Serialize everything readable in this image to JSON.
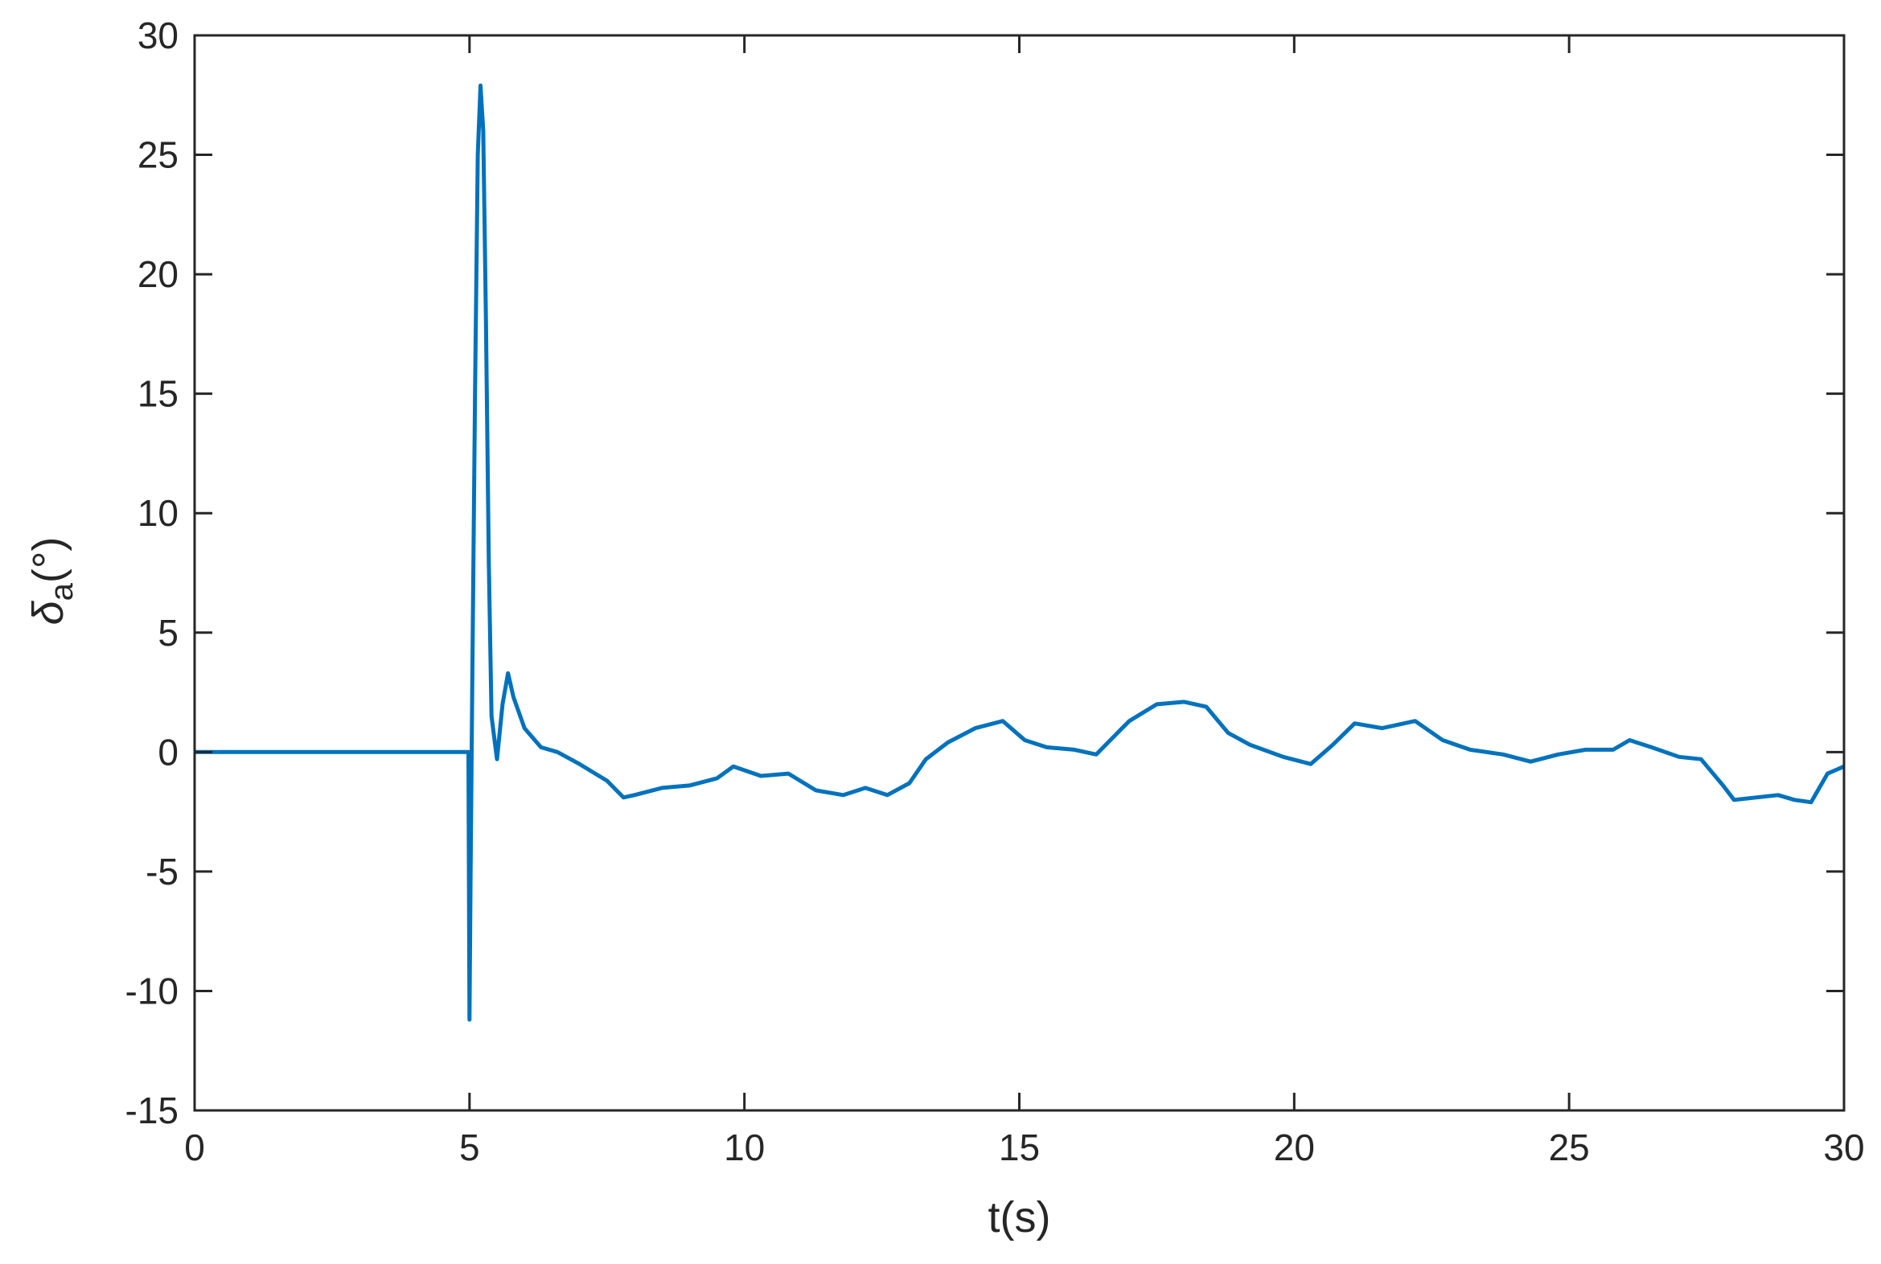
{
  "chart_data": {
    "type": "line",
    "title": "",
    "xlabel": "t(s)",
    "ylabel": {
      "symbol": "δ",
      "subscript": "a",
      "unit": "(°)"
    },
    "xlim": [
      0,
      30
    ],
    "ylim": [
      -15,
      30
    ],
    "xticks": [
      0,
      5,
      10,
      15,
      20,
      25,
      30
    ],
    "yticks": [
      -15,
      -10,
      -5,
      0,
      5,
      10,
      15,
      20,
      25,
      30
    ],
    "grid": false,
    "line_color": "#0072BD",
    "series": [
      {
        "x": [
          0,
          4.98,
          5.0,
          5.02,
          5.05,
          5.1,
          5.15,
          5.2,
          5.25,
          5.3,
          5.35,
          5.4,
          5.5,
          5.6,
          5.7,
          5.8,
          6.0,
          6.3,
          6.6,
          7.0,
          7.5,
          7.8,
          8.0,
          8.5,
          9.0,
          9.5,
          9.8,
          10.3,
          10.8,
          11.3,
          11.8,
          12.2,
          12.6,
          13.0,
          13.3,
          13.7,
          14.2,
          14.7,
          15.1,
          15.5,
          16.0,
          16.4,
          17.0,
          17.5,
          18.0,
          18.4,
          18.8,
          19.2,
          19.8,
          20.3,
          20.7,
          21.1,
          21.6,
          22.2,
          22.7,
          23.2,
          23.8,
          24.3,
          24.8,
          25.3,
          25.8,
          26.1,
          26.5,
          27.0,
          27.4,
          27.8,
          28.0,
          28.4,
          28.8,
          29.1,
          29.4,
          29.7,
          30.0
        ],
        "values": [
          0,
          0,
          -11.2,
          -5,
          3,
          15,
          25,
          27.9,
          26,
          18,
          8,
          1.5,
          -0.3,
          2.0,
          3.3,
          2.3,
          1.0,
          0.2,
          0.0,
          -0.5,
          -1.2,
          -1.9,
          -1.8,
          -1.5,
          -1.4,
          -1.1,
          -0.6,
          -1.0,
          -0.9,
          -1.6,
          -1.8,
          -1.5,
          -1.8,
          -1.3,
          -0.3,
          0.4,
          1.0,
          1.3,
          0.5,
          0.2,
          0.1,
          -0.1,
          1.3,
          2.0,
          2.1,
          1.9,
          0.8,
          0.3,
          -0.2,
          -0.5,
          0.3,
          1.2,
          1.0,
          1.3,
          0.5,
          0.1,
          -0.1,
          -0.4,
          -0.1,
          0.1,
          0.1,
          0.5,
          0.2,
          -0.2,
          -0.3,
          -1.4,
          -2.0,
          -1.9,
          -1.8,
          -2.0,
          -2.1,
          -0.9,
          -0.6
        ]
      }
    ]
  }
}
